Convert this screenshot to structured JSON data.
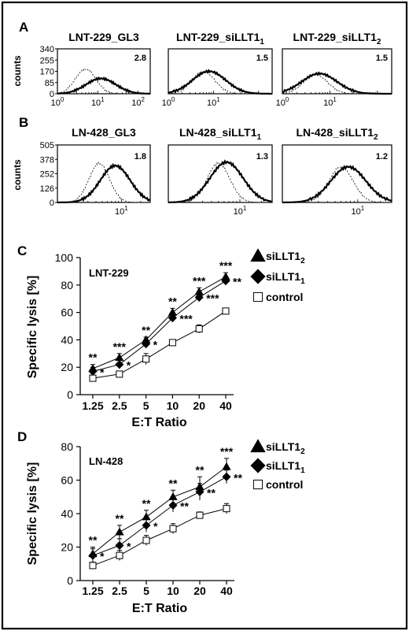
{
  "chart_data": [
    {
      "panel": "A",
      "type": "histogram",
      "ylabel": "counts",
      "y_ticks": [
        "340",
        "255",
        "170",
        "85",
        "0"
      ],
      "x_scale": "log",
      "plots": [
        {
          "title": "LNT-229_GL3",
          "title_parts": [
            "LNT-229_GL3",
            ""
          ],
          "value": "2.8",
          "x_ticks": [
            "10^0",
            "10^1",
            "10^2"
          ],
          "peaks": {
            "control": {
              "mode": 5,
              "height": 0.55
            },
            "stained": {
              "mode": 12,
              "height": 0.34
            }
          }
        },
        {
          "title": "LNT-229_siLLT1_1",
          "title_parts": [
            "LNT-229_siLLT1",
            "1"
          ],
          "value": "1.5",
          "x_ticks": [
            "10^0",
            "10^1"
          ],
          "peaks": {
            "control": {
              "mode": 6,
              "height": 0.5
            },
            "stained": {
              "mode": 8,
              "height": 0.5
            }
          }
        },
        {
          "title": "LNT-229_siLLT1_2",
          "title_parts": [
            "LNT-229_siLLT1",
            "2"
          ],
          "value": "1.5",
          "x_ticks": [
            "10^0",
            "10^1"
          ],
          "peaks": {
            "control": {
              "mode": 5,
              "height": 0.42
            },
            "stained": {
              "mode": 6,
              "height": 0.45
            }
          }
        }
      ]
    },
    {
      "panel": "B",
      "type": "histogram",
      "ylabel": "counts",
      "y_ticks": [
        "505",
        "378",
        "252",
        "126",
        "0"
      ],
      "x_scale": "log",
      "plots": [
        {
          "title": "LN-428_GL3",
          "title_parts": [
            "LN-428_GL3",
            ""
          ],
          "value": "1.8",
          "x_ticks": [
            "10^1"
          ],
          "peaks": {
            "control": {
              "mode": 4.5,
              "height": 0.68
            },
            "stained": {
              "mode": 8,
              "height": 0.64
            }
          }
        },
        {
          "title": "LN-428_siLLT1_1",
          "title_parts": [
            "LN-428_siLLT1",
            "1"
          ],
          "value": "1.3",
          "x_ticks": [
            "10^1"
          ],
          "peaks": {
            "control": {
              "mode": 5,
              "height": 0.68
            },
            "stained": {
              "mode": 6.5,
              "height": 0.7
            }
          }
        },
        {
          "title": "LN-428_siLLT1_2",
          "title_parts": [
            "LN-428_siLLT1",
            "2"
          ],
          "value": "1.2",
          "x_ticks": [
            "10^1"
          ],
          "peaks": {
            "control": {
              "mode": 6,
              "height": 0.62
            },
            "stained": {
              "mode": 7.5,
              "height": 0.62
            }
          }
        }
      ]
    },
    {
      "panel": "C",
      "type": "line",
      "cell_line": "LNT-229",
      "xlabel": "E:T Ratio",
      "ylabel": "Specific lysis [%]",
      "categories": [
        "1.25",
        "2.5",
        "5",
        "10",
        "20",
        "40"
      ],
      "ylim": [
        0,
        100
      ],
      "y_ticks": [
        0,
        20,
        40,
        60,
        80,
        100
      ],
      "series": [
        {
          "name": "siLLT1_2",
          "name_parts": [
            "siLLT1",
            "2"
          ],
          "marker": "triangle",
          "values": [
            19,
            27,
            40,
            60,
            75,
            86
          ],
          "errors": [
            3,
            3,
            2,
            3,
            3,
            3
          ],
          "sig": [
            "**",
            "***",
            "**",
            "**",
            "***",
            "***"
          ]
        },
        {
          "name": "siLLT1_1",
          "name_parts": [
            "siLLT1",
            "1"
          ],
          "marker": "diamond",
          "values": [
            17,
            22,
            37,
            56,
            71,
            83
          ],
          "errors": [
            3,
            3,
            2,
            3,
            3,
            3
          ],
          "sig": [
            "*",
            "*",
            "*",
            "***",
            "***",
            "**"
          ]
        },
        {
          "name": "control",
          "name_parts": [
            "control",
            ""
          ],
          "marker": "square",
          "values": [
            12,
            15,
            26,
            38,
            48,
            61
          ],
          "errors": [
            2,
            2,
            4,
            1,
            3,
            1
          ],
          "sig": []
        }
      ]
    },
    {
      "panel": "D",
      "type": "line",
      "cell_line": "LN-428",
      "xlabel": "E:T Ratio",
      "ylabel": "Specific lysis [%]",
      "categories": [
        "1.25",
        "2.5",
        "5",
        "10",
        "20",
        "40"
      ],
      "ylim": [
        0,
        80
      ],
      "y_ticks": [
        0,
        20,
        40,
        60,
        80
      ],
      "series": [
        {
          "name": "siLLT1_2",
          "name_parts": [
            "siLLT1",
            "2"
          ],
          "marker": "triangle",
          "values": [
            16,
            29,
            38,
            50,
            56,
            68
          ],
          "errors": [
            4,
            4,
            4,
            4,
            6,
            5
          ],
          "sig": [
            "**",
            "**",
            "**",
            "**",
            "**",
            "***"
          ]
        },
        {
          "name": "siLLT1_1",
          "name_parts": [
            "siLLT1",
            "1"
          ],
          "marker": "diamond",
          "values": [
            15,
            21,
            33,
            45,
            53,
            62
          ],
          "errors": [
            4,
            4,
            4,
            4,
            5,
            4
          ],
          "sig": [
            "*",
            "*",
            "*",
            "**",
            "**",
            "**"
          ]
        },
        {
          "name": "control",
          "name_parts": [
            "control",
            ""
          ],
          "marker": "square",
          "values": [
            9,
            15,
            24,
            31,
            39,
            43
          ],
          "errors": [
            2,
            3,
            3,
            3,
            2,
            3
          ],
          "sig": []
        }
      ]
    }
  ]
}
